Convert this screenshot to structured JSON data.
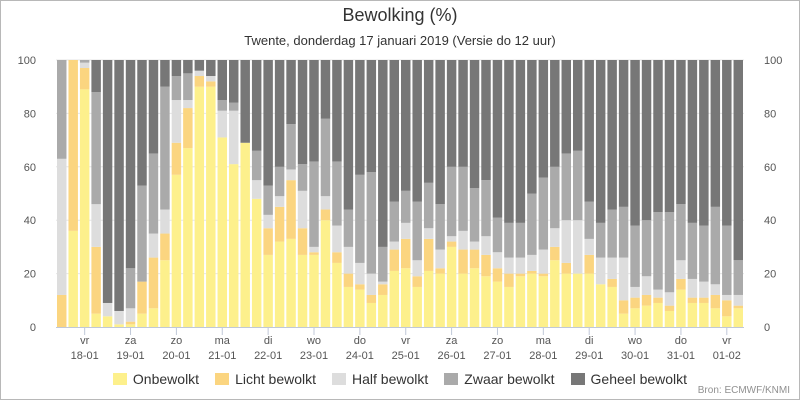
{
  "title": "Bewolking (%)",
  "subtitle": "Twente, donderdag 17 januari 2019 (Versie do 12 uur)",
  "credits": "Bron: ECMWF/KNMI",
  "chart_data": {
    "type": "bar",
    "stacked": true,
    "ylim": [
      0,
      100
    ],
    "yticks": [
      0,
      20,
      40,
      60,
      80,
      100
    ],
    "grid": true,
    "legend_position": "bottom",
    "x_day_labels": [
      "vr",
      "za",
      "zo",
      "ma",
      "di",
      "wo",
      "do",
      "vr",
      "za",
      "zo",
      "ma",
      "di",
      "wo",
      "do",
      "vr"
    ],
    "x_date_labels": [
      "18-01",
      "19-01",
      "20-01",
      "21-01",
      "22-01",
      "23-01",
      "24-01",
      "25-01",
      "26-01",
      "27-01",
      "28-01",
      "29-01",
      "30-01",
      "31-01",
      "01-02"
    ],
    "x_label_bar_index": [
      2,
      6,
      10,
      14,
      18,
      22,
      26,
      30,
      34,
      38,
      42,
      46,
      50,
      54,
      58
    ],
    "series": [
      {
        "name": "Onbewolkt",
        "color": "#fdf08c",
        "values": [
          0,
          36,
          89,
          5,
          4,
          1,
          1,
          5,
          7,
          25,
          57,
          67,
          90,
          90,
          71,
          61,
          69,
          48,
          27,
          32,
          33,
          27,
          27,
          40,
          24,
          15,
          14,
          9,
          12,
          21,
          22,
          15,
          21,
          20,
          30,
          20,
          22,
          19,
          17,
          15,
          19,
          20,
          19,
          25,
          20,
          20,
          20,
          16,
          15,
          5,
          7,
          8,
          9,
          6,
          14,
          9,
          9,
          7,
          4,
          7
        ]
      },
      {
        "name": "Licht bewolkt",
        "color": "#fbd580",
        "values": [
          12,
          64,
          8,
          25,
          0,
          0,
          1,
          12,
          19,
          10,
          12,
          15,
          4,
          2,
          0,
          0,
          0,
          0,
          10,
          13,
          22,
          10,
          1,
          4,
          4,
          5,
          2,
          3,
          4,
          8,
          11,
          4,
          12,
          2,
          2,
          9,
          7,
          8,
          5,
          5,
          1,
          1,
          1,
          5,
          4,
          0,
          7,
          0,
          3,
          5,
          4,
          4,
          2,
          2,
          4,
          2,
          2,
          5,
          6,
          1
        ]
      },
      {
        "name": "Half bewolkt",
        "color": "#dddddd",
        "values": [
          51,
          0,
          2,
          16,
          5,
          5,
          5,
          0,
          9,
          9,
          16,
          3,
          2,
          2,
          10,
          20,
          0,
          7,
          5,
          4,
          4,
          14,
          2,
          5,
          10,
          10,
          8,
          8,
          1,
          3,
          6,
          6,
          4,
          7,
          2,
          7,
          3,
          7,
          6,
          6,
          6,
          6,
          9,
          7,
          16,
          20,
          6,
          10,
          8,
          16,
          4,
          7,
          3,
          5,
          7,
          7,
          6,
          4,
          2,
          4
        ]
      },
      {
        "name": "Zwaar bewolkt",
        "color": "#aaaaaa",
        "values": [
          37,
          0,
          1,
          42,
          0,
          0,
          15,
          36,
          30,
          46,
          9,
          10,
          0,
          0,
          4,
          3,
          0,
          11,
          11,
          11,
          17,
          10,
          32,
          29,
          24,
          14,
          33,
          38,
          13,
          15,
          12,
          22,
          17,
          17,
          26,
          24,
          20,
          21,
          13,
          13,
          13,
          23,
          27,
          23,
          25,
          26,
          14,
          13,
          18,
          19,
          23,
          21,
          29,
          30,
          21,
          21,
          21,
          29,
          26,
          13
        ]
      },
      {
        "name": "Geheel bewolkt",
        "color": "#777777",
        "values": [
          0,
          0,
          0,
          12,
          91,
          94,
          78,
          47,
          35,
          10,
          6,
          5,
          4,
          6,
          15,
          16,
          31,
          34,
          47,
          40,
          24,
          39,
          38,
          22,
          38,
          56,
          43,
          42,
          70,
          53,
          49,
          53,
          46,
          54,
          40,
          40,
          48,
          45,
          59,
          61,
          61,
          50,
          44,
          40,
          35,
          34,
          53,
          61,
          56,
          55,
          62,
          60,
          57,
          57,
          54,
          61,
          62,
          55,
          62,
          75
        ]
      }
    ]
  }
}
